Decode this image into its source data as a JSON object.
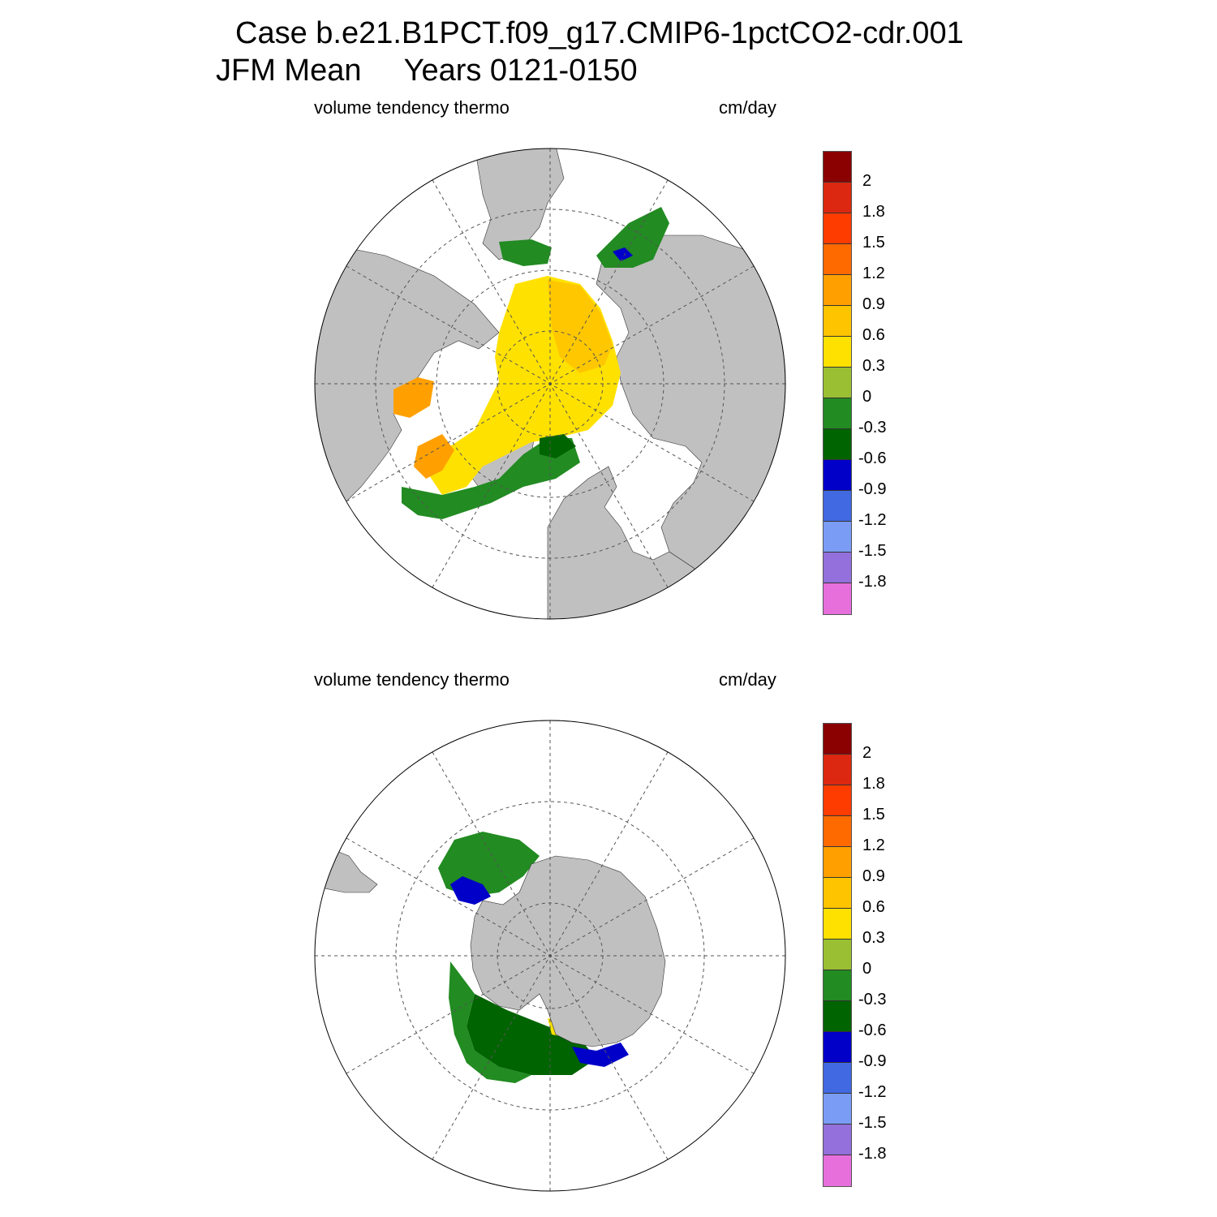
{
  "title_line1": "Case b.e21.B1PCT.f09_g17.CMIP6-1pctCO2-cdr.001",
  "title_line2": "JFM Mean     Years 0121-0150",
  "panels": [
    {
      "left_label": "volume tendency thermo",
      "right_label": "cm/day"
    },
    {
      "left_label": "volume tendency thermo",
      "right_label": "cm/day"
    }
  ],
  "colorbar": {
    "colors": [
      "#e66fdc",
      "#9370db",
      "#7a9cf4",
      "#4169e1",
      "#0000c8",
      "#006400",
      "#228b22",
      "#9bbf32",
      "#ffe100",
      "#ffc400",
      "#ffa000",
      "#ff6a00",
      "#ff3c00",
      "#dc2810",
      "#8b0000"
    ],
    "labels": [
      "-1.8",
      "-1.5",
      "-1.2",
      "-0.9",
      "-0.6",
      "-0.3",
      "0",
      "0.3",
      "0.6",
      "0.9",
      "1.2",
      "1.5",
      "1.8",
      "2"
    ]
  },
  "colors": {
    "land": "#c0c0c0",
    "grid": "#555555"
  }
}
